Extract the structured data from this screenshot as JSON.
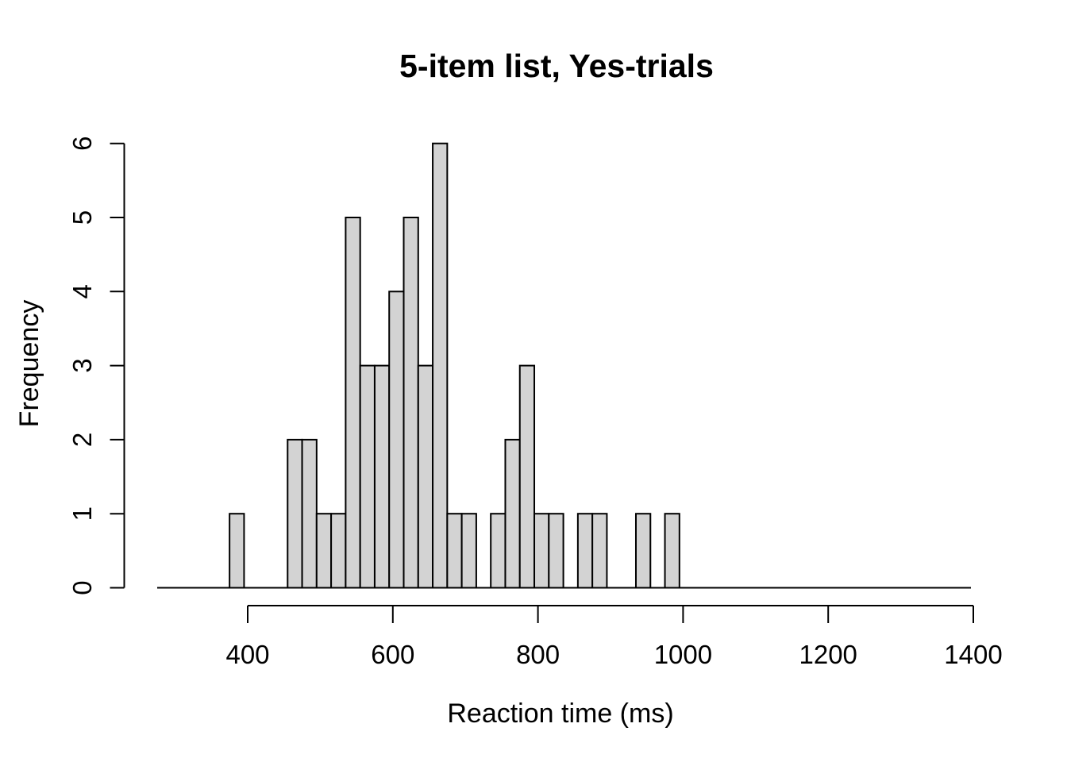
{
  "page": {
    "background_color": "#FFFFFF"
  },
  "chart_data": {
    "type": "bar",
    "subtype": "histogram",
    "title": "5-item list, Yes-trials",
    "xlabel": "Reaction time (ms)",
    "ylabel": "Frequency",
    "x_ticks": [
      400,
      600,
      800,
      1000,
      1200,
      1400
    ],
    "y_ticks": [
      0,
      1,
      2,
      3,
      4,
      5,
      6
    ],
    "xlim_ms": [
      400,
      1400
    ],
    "ylim": [
      0,
      6
    ],
    "grid": "off",
    "legend": "none",
    "bin_width_ms": 20,
    "bin_edges_ms": [
      375,
      395,
      415,
      435,
      455,
      475,
      495,
      515,
      535,
      555,
      575,
      595,
      615,
      635,
      655,
      675,
      695,
      715,
      735,
      755,
      775,
      795,
      815,
      835,
      855,
      875,
      895,
      915,
      935,
      955,
      975,
      995
    ],
    "bin_counts": [
      1,
      0,
      0,
      0,
      2,
      2,
      1,
      1,
      5,
      3,
      3,
      4,
      5,
      3,
      6,
      1,
      1,
      0,
      1,
      2,
      3,
      1,
      1,
      0,
      1,
      1,
      0,
      0,
      1,
      0,
      1
    ],
    "n_observations": 50,
    "bar_fill_color": "#D3D3D3",
    "bar_border_color": "#000000",
    "axis_color": "#000000"
  }
}
